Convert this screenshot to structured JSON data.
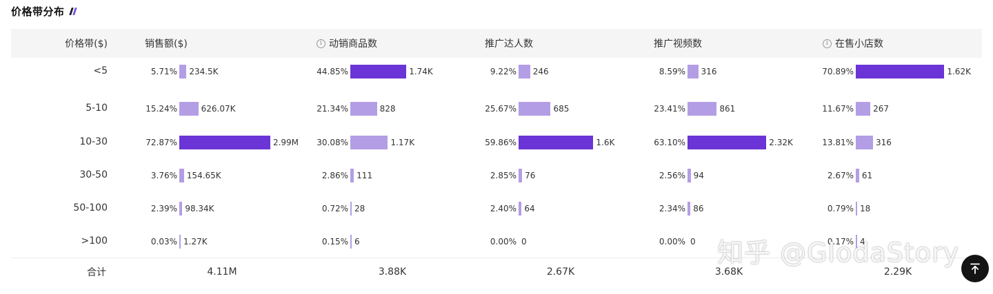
{
  "title": "价格带分布",
  "colors": {
    "highlight": "#6b34d6",
    "normal": "#b39ee6",
    "mark1": "#1f1f2e",
    "mark2": "#7a57e0"
  },
  "columns": [
    {
      "key": "price_band",
      "label": "价格带($)",
      "info": false
    },
    {
      "key": "sales",
      "label": "销售额($)",
      "info": false
    },
    {
      "key": "products",
      "label": "动销商品数",
      "info": true
    },
    {
      "key": "influencers",
      "label": "推广达人数",
      "info": false
    },
    {
      "key": "videos",
      "label": "推广视频数",
      "info": false
    },
    {
      "key": "shops",
      "label": "在售小店数",
      "info": true
    }
  ],
  "rows": [
    {
      "label": "<5",
      "cells": [
        {
          "pct": "5.71%",
          "share": 5.71,
          "value": "234.5K",
          "top": false
        },
        {
          "pct": "44.85%",
          "share": 44.85,
          "value": "1.74K",
          "top": true
        },
        {
          "pct": "9.22%",
          "share": 9.22,
          "value": "246",
          "top": false
        },
        {
          "pct": "8.59%",
          "share": 8.59,
          "value": "316",
          "top": false
        },
        {
          "pct": "70.89%",
          "share": 70.89,
          "value": "1.62K",
          "top": true
        }
      ]
    },
    {
      "label": "5-10",
      "cells": [
        {
          "pct": "15.24%",
          "share": 15.24,
          "value": "626.07K",
          "top": false
        },
        {
          "pct": "21.34%",
          "share": 21.34,
          "value": "828",
          "top": false
        },
        {
          "pct": "25.67%",
          "share": 25.67,
          "value": "685",
          "top": false
        },
        {
          "pct": "23.41%",
          "share": 23.41,
          "value": "861",
          "top": false
        },
        {
          "pct": "11.67%",
          "share": 11.67,
          "value": "267",
          "top": false
        }
      ]
    },
    {
      "label": "10-30",
      "cells": [
        {
          "pct": "72.87%",
          "share": 72.87,
          "value": "2.99M",
          "top": true
        },
        {
          "pct": "30.08%",
          "share": 30.08,
          "value": "1.17K",
          "top": false
        },
        {
          "pct": "59.86%",
          "share": 59.86,
          "value": "1.6K",
          "top": true
        },
        {
          "pct": "63.10%",
          "share": 63.1,
          "value": "2.32K",
          "top": true
        },
        {
          "pct": "13.81%",
          "share": 13.81,
          "value": "316",
          "top": false
        }
      ]
    },
    {
      "label": "30-50",
      "cells": [
        {
          "pct": "3.76%",
          "share": 3.76,
          "value": "154.65K",
          "top": false
        },
        {
          "pct": "2.86%",
          "share": 2.86,
          "value": "111",
          "top": false
        },
        {
          "pct": "2.85%",
          "share": 2.85,
          "value": "76",
          "top": false
        },
        {
          "pct": "2.56%",
          "share": 2.56,
          "value": "94",
          "top": false
        },
        {
          "pct": "2.67%",
          "share": 2.67,
          "value": "61",
          "top": false
        }
      ]
    },
    {
      "label": "50-100",
      "cells": [
        {
          "pct": "2.39%",
          "share": 2.39,
          "value": "98.34K",
          "top": false
        },
        {
          "pct": "0.72%",
          "share": 0.72,
          "value": "28",
          "top": false
        },
        {
          "pct": "2.40%",
          "share": 2.4,
          "value": "64",
          "top": false
        },
        {
          "pct": "2.34%",
          "share": 2.34,
          "value": "86",
          "top": false
        },
        {
          "pct": "0.79%",
          "share": 0.79,
          "value": "18",
          "top": false
        }
      ]
    },
    {
      "label": ">100",
      "cells": [
        {
          "pct": "0.03%",
          "share": 0.03,
          "value": "1.27K",
          "top": false
        },
        {
          "pct": "0.15%",
          "share": 0.15,
          "value": "6",
          "top": false
        },
        {
          "pct": "0.00%",
          "share": 0,
          "value": "0",
          "top": false
        },
        {
          "pct": "0.00%",
          "share": 0,
          "value": "0",
          "top": false
        },
        {
          "pct": "0.17%",
          "share": 0.17,
          "value": "4",
          "top": false
        }
      ]
    }
  ],
  "footer": {
    "label": "合计",
    "totals": [
      "4.11M",
      "3.88K",
      "2.67K",
      "3.68K",
      "2.29K"
    ]
  },
  "watermark": "知乎 @GlodaStory",
  "back_to_top_icon": "arrow-up-to-top-icon"
}
